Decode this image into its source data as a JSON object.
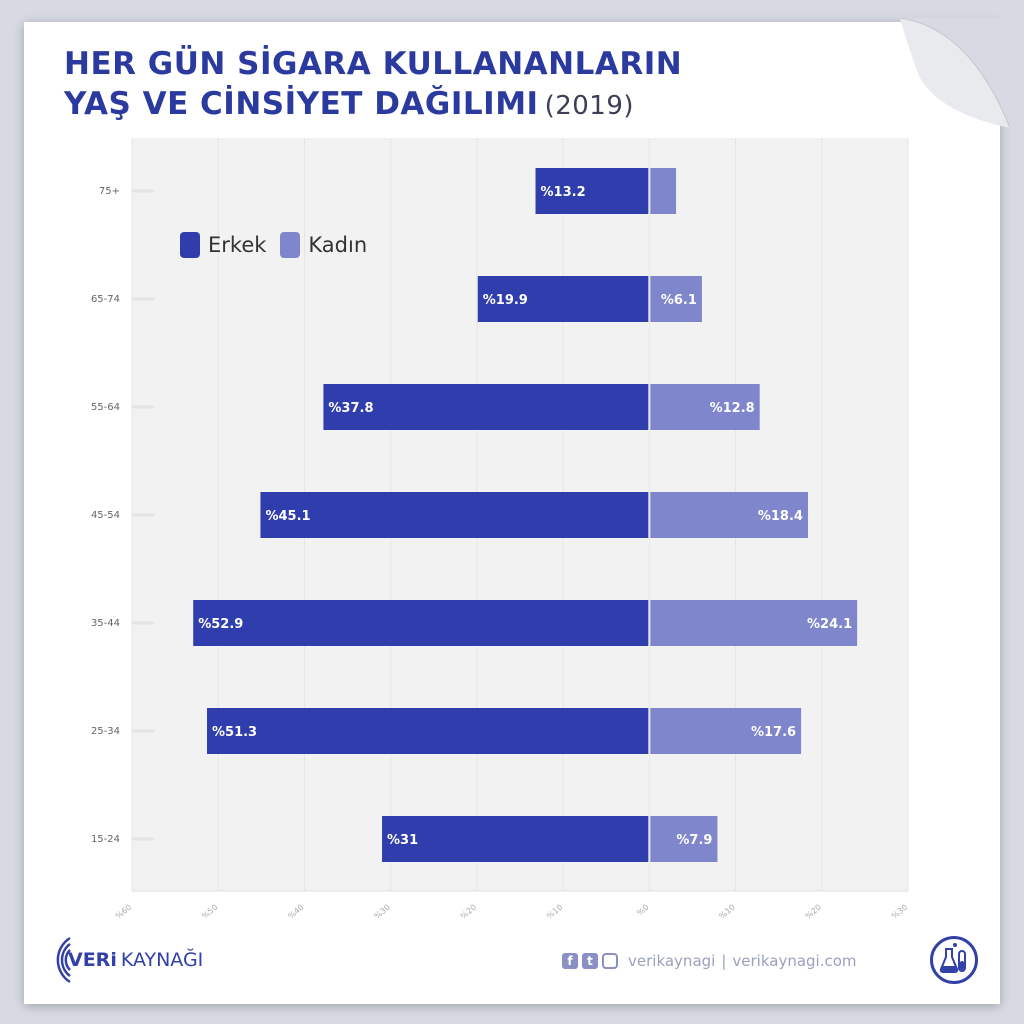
{
  "title": {
    "line1": "HER GÜN SİGARA KULLANANLARIN",
    "line2": "YAŞ VE CİNSİYET DAĞILIMI",
    "year": "(2019)"
  },
  "colors": {
    "erkek": "#2f3eac",
    "kadin": "#7f86cc",
    "title": "#2b3a9e"
  },
  "chart_data": {
    "type": "bar",
    "orientation": "horizontal-diverging",
    "categories": [
      "75+",
      "65-74",
      "55-64",
      "45-54",
      "35-44",
      "25-34",
      "15-24"
    ],
    "series": [
      {
        "name": "Erkek",
        "values": [
          13.2,
          19.9,
          37.8,
          45.1,
          52.9,
          51.3,
          31
        ]
      },
      {
        "name": "Kadın",
        "values": [
          3.1,
          6.1,
          12.8,
          18.4,
          24.1,
          17.6,
          7.9
        ]
      }
    ],
    "data_labels": {
      "Erkek": [
        "%13.2",
        "%19.9",
        "%37.8",
        "%45.1",
        "%52.9",
        "%51.3",
        "%31"
      ],
      "Kadın": [
        "",
        "%6.1",
        "%12.8",
        "%18.4",
        "%24.1",
        "%17.6",
        "%7.9"
      ]
    },
    "xticks": [
      "%60",
      "%50",
      "%40",
      "%30",
      "%20",
      "%10",
      "%0",
      "%10",
      "%20",
      "%30"
    ],
    "xlim": [
      -60,
      30
    ],
    "legend_position": "top-left",
    "grid": true
  },
  "legend": {
    "erkek": "Erkek",
    "kadin": "Kadın"
  },
  "footer": {
    "brand_bold": "VERi",
    "brand_rest": "KAYNAĞI",
    "social_handle": "verikaynagi",
    "separator": "|",
    "website": "verikaynagi.com",
    "icons": [
      "facebook-icon",
      "twitter-icon",
      "instagram-icon",
      "lab-flask-icon"
    ]
  }
}
